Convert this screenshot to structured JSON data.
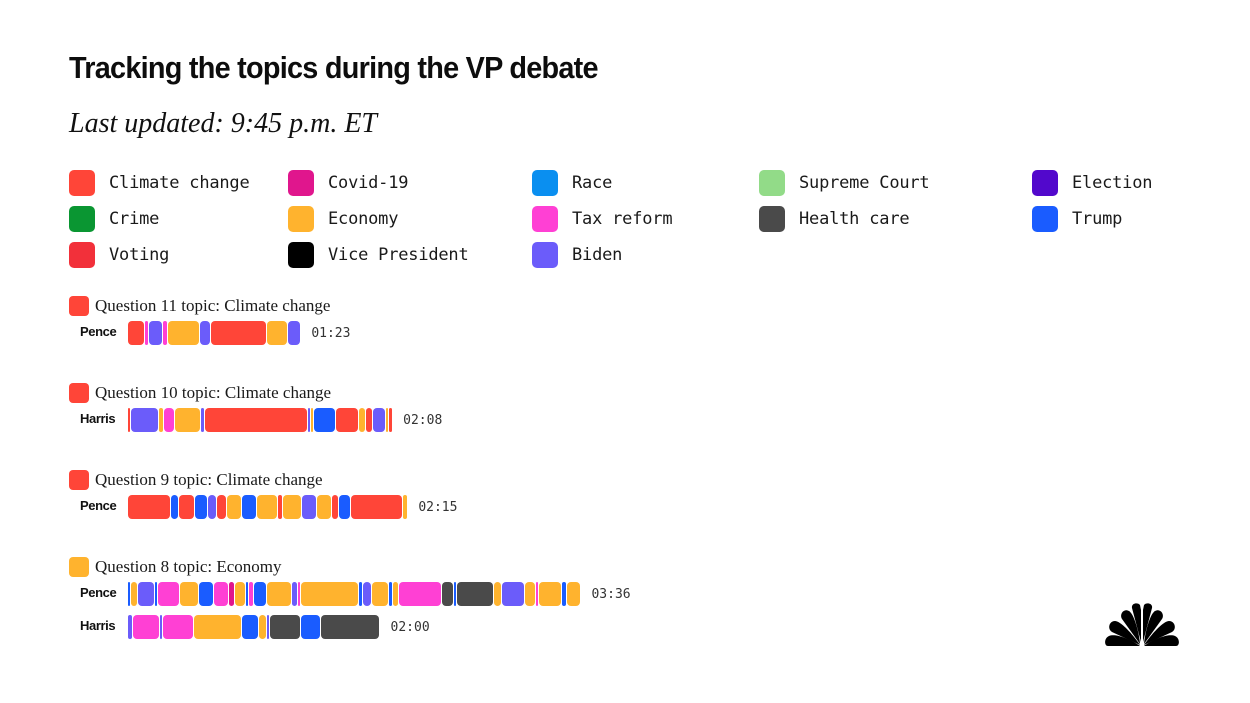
{
  "chart_data": {
    "type": "bar",
    "subtype": "stacked-timeline",
    "title": "Tracking the topics during the VP debate",
    "subtitle": "Last updated: 9:45 p.m. ET",
    "units": "seconds",
    "topics": [
      {
        "key": "climate",
        "label": "Climate change",
        "color": "#FF4538"
      },
      {
        "key": "covid",
        "label": "Covid-19",
        "color": "#E0168D"
      },
      {
        "key": "race",
        "label": "Race",
        "color": "#0A8FF0"
      },
      {
        "key": "scotus",
        "label": "Supreme Court",
        "color": "#92DB88"
      },
      {
        "key": "election",
        "label": "Election",
        "color": "#5208CC"
      },
      {
        "key": "crime",
        "label": "Crime",
        "color": "#0A9632"
      },
      {
        "key": "economy",
        "label": "Economy",
        "color": "#FFB32E"
      },
      {
        "key": "tax",
        "label": "Tax reform",
        "color": "#FF40D4"
      },
      {
        "key": "health",
        "label": "Health care",
        "color": "#4A4A4A"
      },
      {
        "key": "trump",
        "label": "Trump",
        "color": "#1A5CFF"
      },
      {
        "key": "voting",
        "label": "Voting",
        "color": "#F2303A"
      },
      {
        "key": "vp",
        "label": "Vice President",
        "color": "#000000"
      },
      {
        "key": "biden",
        "label": "Biden",
        "color": "#6B5CFA"
      }
    ],
    "questions": [
      {
        "label": "Question 11 topic: Climate change",
        "topic": "climate",
        "speakers": [
          {
            "name": "Pence",
            "duration": "01:23",
            "segments": [
              [
                "climate",
                8
              ],
              [
                "tax",
                2
              ],
              [
                "biden",
                6.5
              ],
              [
                "tax",
                2
              ],
              [
                "economy",
                15
              ],
              [
                "biden",
                5.5
              ],
              [
                "climate",
                26
              ],
              [
                "economy",
                10
              ],
              [
                "biden",
                6
              ]
            ]
          }
        ]
      },
      {
        "label": "Question 10 topic: Climate change",
        "topic": "climate",
        "speakers": [
          {
            "name": "Harris",
            "duration": "02:08",
            "segments": [
              [
                "climate",
                1.5
              ],
              [
                "biden",
                13
              ],
              [
                "economy",
                2.5
              ],
              [
                "tax",
                5
              ],
              [
                "economy",
                12
              ],
              [
                "biden",
                2
              ],
              [
                "climate",
                48
              ],
              [
                "biden",
                1
              ],
              [
                "economy",
                1.5
              ],
              [
                "trump",
                10.5
              ],
              [
                "climate",
                10.5
              ],
              [
                "economy",
                3.5
              ],
              [
                "climate",
                3
              ],
              [
                "biden",
                6
              ],
              [
                "economy",
                1.5
              ],
              [
                "climate",
                2
              ]
            ]
          }
        ]
      },
      {
        "label": "Question 9 topic: Climate change",
        "topic": "climate",
        "speakers": [
          {
            "name": "Pence",
            "duration": "02:15",
            "segments": [
              [
                "climate",
                20
              ],
              [
                "trump",
                4
              ],
              [
                "climate",
                7.5
              ],
              [
                "trump",
                6
              ],
              [
                "biden",
                4
              ],
              [
                "climate",
                5
              ],
              [
                "economy",
                7
              ],
              [
                "trump",
                7
              ],
              [
                "economy",
                9.5
              ],
              [
                "climate",
                2.5
              ],
              [
                "economy",
                9
              ],
              [
                "biden",
                7
              ],
              [
                "economy",
                7
              ],
              [
                "climate",
                3
              ],
              [
                "trump",
                6
              ],
              [
                "climate",
                24
              ],
              [
                "economy",
                2.5
              ]
            ]
          }
        ]
      },
      {
        "label": "Question 8 topic: Economy",
        "topic": "economy",
        "speakers": [
          {
            "name": "Pence",
            "duration": "03:36",
            "segments": [
              [
                "trump",
                1.5
              ],
              [
                "economy",
                3
              ],
              [
                "biden",
                8
              ],
              [
                "trump",
                1.5
              ],
              [
                "tax",
                10.5
              ],
              [
                "economy",
                8.5
              ],
              [
                "trump",
                7
              ],
              [
                "tax",
                7
              ],
              [
                "covid",
                3
              ],
              [
                "economy",
                5
              ],
              [
                "trump",
                1
              ],
              [
                "tax",
                2.5
              ],
              [
                "trump",
                6
              ],
              [
                "economy",
                12
              ],
              [
                "biden",
                2.5
              ],
              [
                "tax",
                1.5
              ],
              [
                "economy",
                27
              ],
              [
                "trump",
                2
              ],
              [
                "biden",
                4
              ],
              [
                "economy",
                8
              ],
              [
                "trump",
                2
              ],
              [
                "economy",
                3
              ],
              [
                "tax",
                20
              ],
              [
                "health",
                5.5
              ],
              [
                "trump",
                1.5
              ],
              [
                "health",
                17
              ],
              [
                "economy",
                4
              ],
              [
                "biden",
                10.5
              ],
              [
                "economy",
                5.5
              ],
              [
                "tax",
                1.5
              ],
              [
                "economy",
                10.5
              ],
              [
                "trump",
                2.5
              ],
              [
                "economy",
                6.5
              ]
            ]
          },
          {
            "name": "Harris",
            "duration": "02:00",
            "segments": [
              [
                "biden",
                2.5
              ],
              [
                "tax",
                12.5
              ],
              [
                "biden",
                1.5
              ],
              [
                "tax",
                14.5
              ],
              [
                "economy",
                22.5
              ],
              [
                "trump",
                7.5
              ],
              [
                "economy",
                4
              ],
              [
                "biden",
                1.5
              ],
              [
                "health",
                14.5
              ],
              [
                "trump",
                9
              ],
              [
                "health",
                28
              ]
            ]
          }
        ]
      }
    ]
  },
  "branding": {
    "logo": "peacock-logo-icon"
  }
}
